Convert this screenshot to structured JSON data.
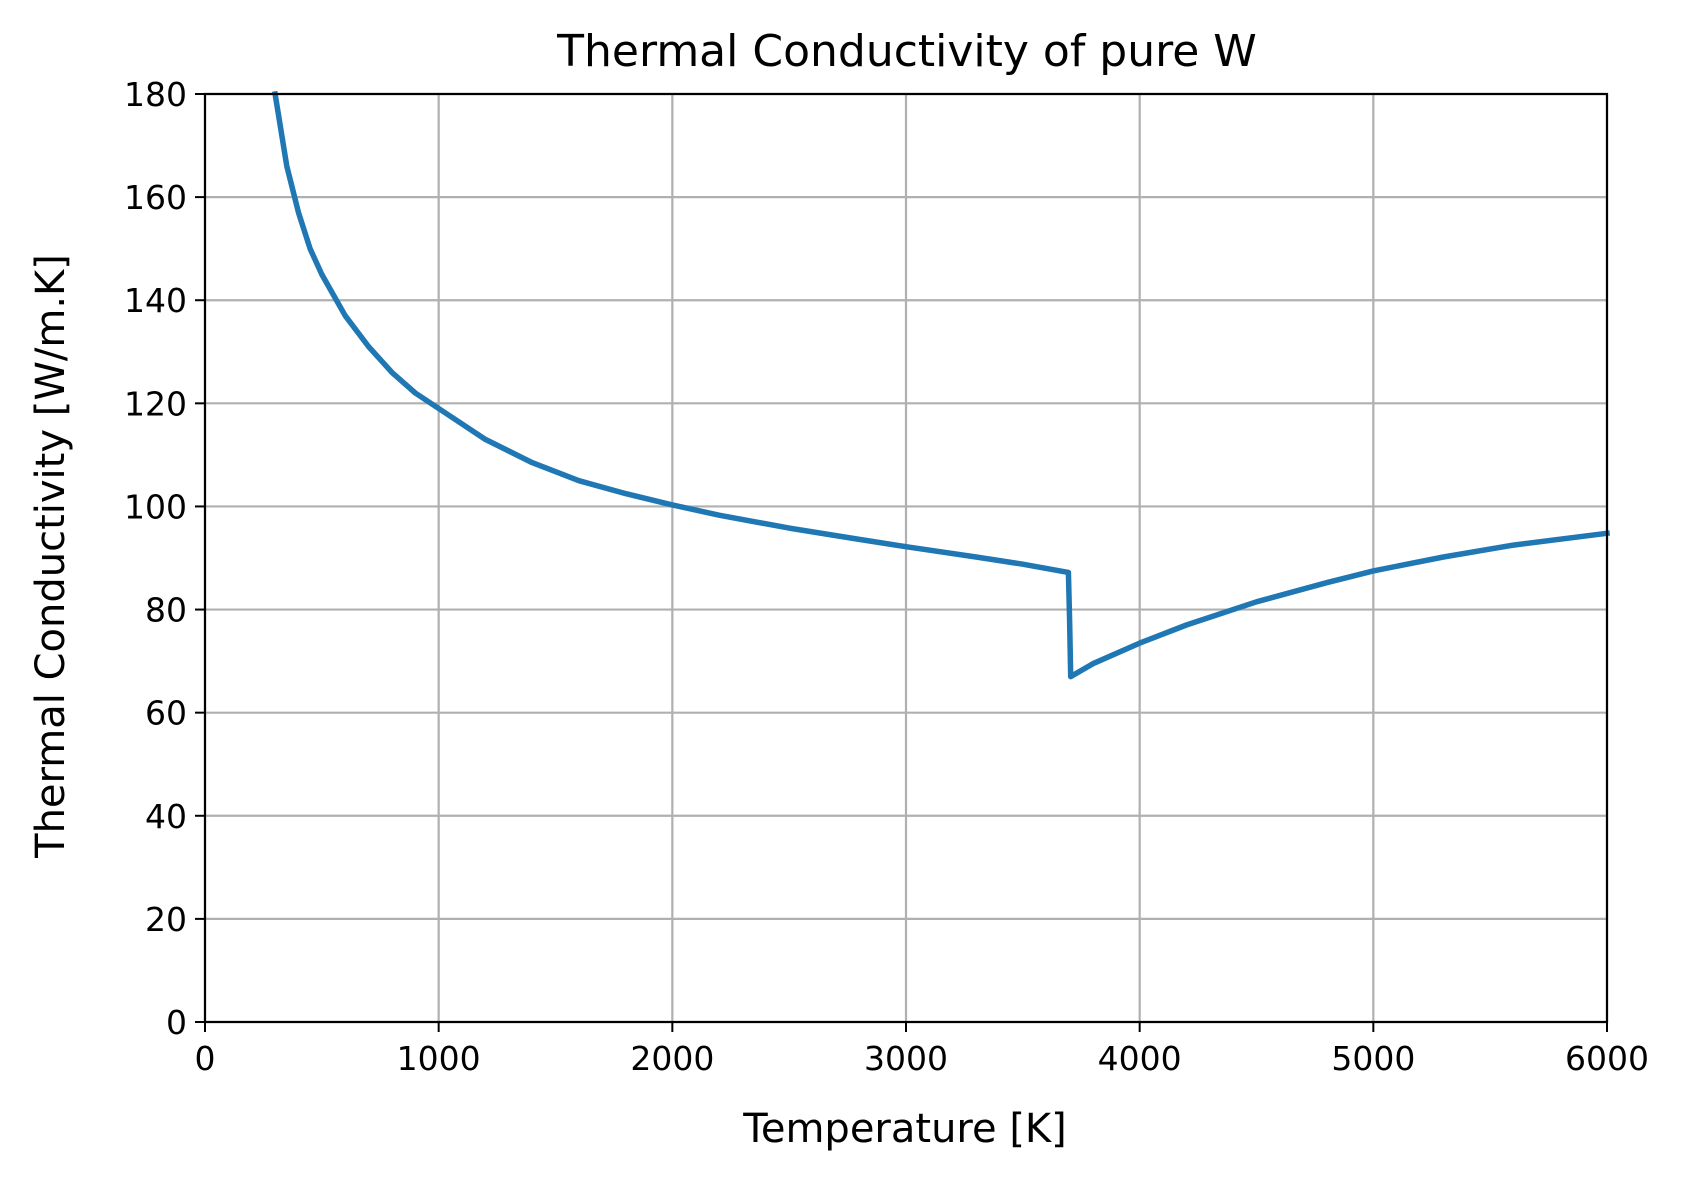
{
  "chart_data": {
    "type": "line",
    "title": "Thermal Conductivity of pure W",
    "xlabel": "Temperature [K]",
    "ylabel": "Thermal Conductivity [W/m.K]",
    "xlim": [
      0,
      6000
    ],
    "ylim": [
      0,
      180
    ],
    "xticks": [
      0,
      1000,
      2000,
      3000,
      4000,
      5000,
      6000
    ],
    "yticks": [
      0,
      20,
      40,
      60,
      80,
      100,
      120,
      140,
      160,
      180
    ],
    "xtick_labels": [
      "0",
      "1000",
      "2000",
      "3000",
      "4000",
      "5000",
      "6000"
    ],
    "ytick_labels": [
      "0",
      "20",
      "40",
      "60",
      "80",
      "100",
      "120",
      "140",
      "160",
      "180"
    ],
    "grid": true,
    "series": [
      {
        "color": "#1f77b4",
        "x": [
          300,
          350,
          400,
          450,
          500,
          600,
          700,
          800,
          900,
          1000,
          1200,
          1400,
          1600,
          1800,
          2000,
          2200,
          2500,
          2800,
          3000,
          3300,
          3500,
          3695,
          3700,
          3705,
          3800,
          4000,
          4200,
          4500,
          4800,
          5000,
          5300,
          5600,
          6000
        ],
        "y": [
          180,
          166,
          157,
          150,
          145,
          137,
          131,
          126,
          122,
          119,
          113,
          108.5,
          105,
          102.5,
          100.3,
          98.3,
          95.8,
          93.6,
          92.2,
          90.2,
          88.8,
          87.2,
          78,
          67,
          69.5,
          73.5,
          77,
          81.5,
          85.2,
          87.5,
          90.2,
          92.5,
          94.8
        ]
      }
    ]
  }
}
